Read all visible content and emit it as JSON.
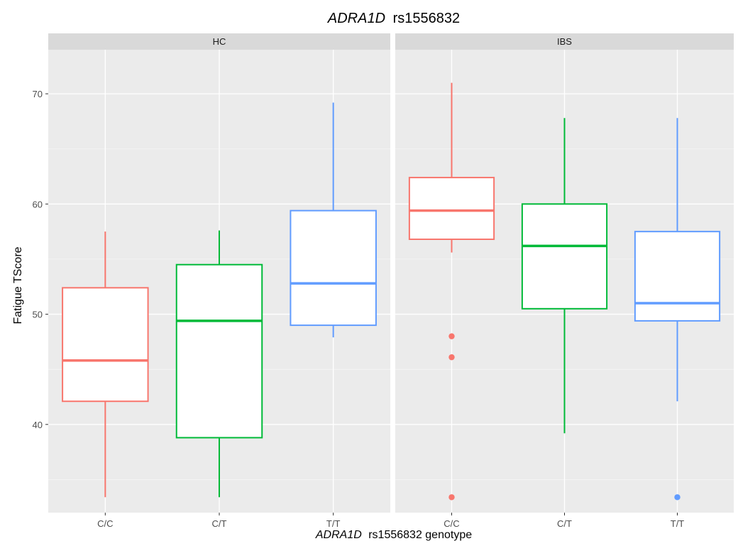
{
  "chart_data": {
    "type": "boxplot",
    "title": {
      "gene": "ADRA1D",
      "snp": "rs1556832"
    },
    "xlabel": {
      "gene": "ADRA1D",
      "rest": "rs1556832 genotype"
    },
    "ylabel": "Fatigue TScore",
    "ylim": [
      32,
      74
    ],
    "yticks": [
      40,
      50,
      60,
      70
    ],
    "categories": [
      "C/C",
      "C/T",
      "T/T"
    ],
    "colors": {
      "C/C": "#F8766D",
      "C/T": "#00BA38",
      "T/T": "#619CFF"
    },
    "grid": true,
    "panels": [
      {
        "name": "HC",
        "boxes": [
          {
            "category": "C/C",
            "min": 33.4,
            "q1": 42.1,
            "median": 45.8,
            "q3": 52.4,
            "max": 57.5,
            "outliers": []
          },
          {
            "category": "C/T",
            "min": 33.4,
            "q1": 38.8,
            "median": 49.4,
            "q3": 54.5,
            "max": 57.6,
            "outliers": []
          },
          {
            "category": "T/T",
            "min": 47.9,
            "q1": 49.0,
            "median": 52.8,
            "q3": 59.4,
            "max": 69.2,
            "outliers": []
          }
        ]
      },
      {
        "name": "IBS",
        "boxes": [
          {
            "category": "C/C",
            "min": 55.6,
            "q1": 56.8,
            "median": 59.4,
            "q3": 62.4,
            "max": 71.0,
            "outliers": [
              48.0,
              46.1,
              33.4
            ]
          },
          {
            "category": "C/T",
            "min": 39.2,
            "q1": 50.5,
            "median": 56.2,
            "q3": 60.0,
            "max": 67.8,
            "outliers": []
          },
          {
            "category": "T/T",
            "min": 42.1,
            "q1": 49.4,
            "median": 51.0,
            "q3": 57.5,
            "max": 67.8,
            "outliers": [
              33.4
            ]
          }
        ]
      }
    ]
  }
}
